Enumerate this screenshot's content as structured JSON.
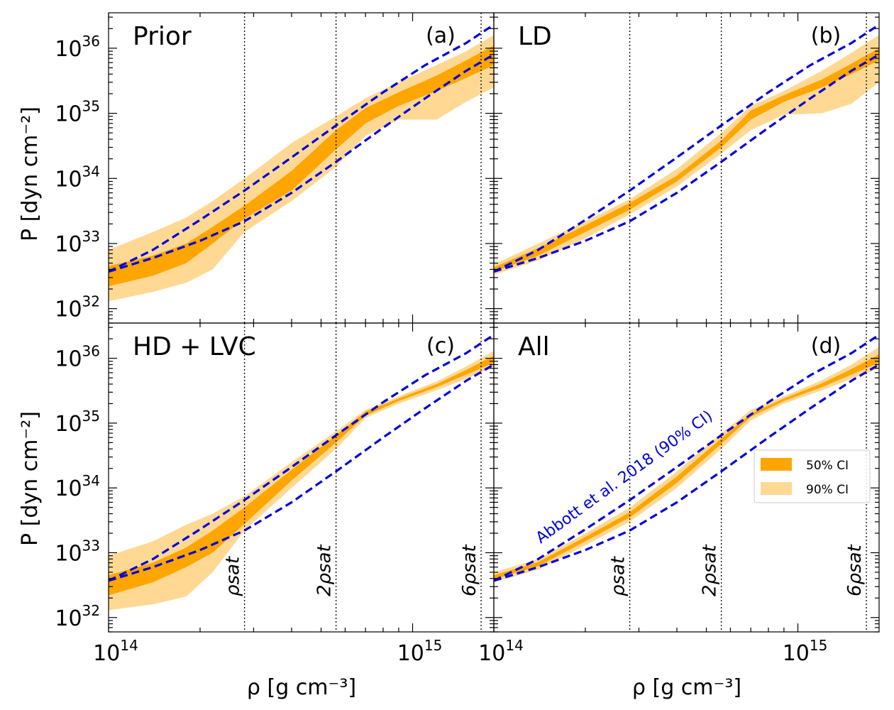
{
  "figure": {
    "xlabel": "ρ [g cm⁻³]",
    "ylabel": "P [dyn cm⁻²]",
    "legend": {
      "ci50": "50% CI",
      "ci90": "90% CI",
      "placement": "panel-d-right"
    },
    "abbott_label": "Abbott et al. 2018 (90% CI)",
    "colors": {
      "ci50": "#FFA500",
      "ci90": "#FFD994",
      "abbott": "#0000DD"
    }
  },
  "chart_data": {
    "type": "area",
    "xscale": "log",
    "yscale": "log",
    "xlim": [
      100000000000000.0,
      1850000000000000.0
    ],
    "ylim": [
      6e+31,
      3.5e+36
    ],
    "x_ticks": [
      {
        "value": 100000000000000.0,
        "base": "10",
        "exp": "14"
      },
      {
        "value": 1000000000000000.0,
        "base": "10",
        "exp": "15"
      }
    ],
    "y_ticks": [
      {
        "value": 1e+32,
        "base": "10",
        "exp": "32"
      },
      {
        "value": 1e+33,
        "base": "10",
        "exp": "33"
      },
      {
        "value": 1e+34,
        "base": "10",
        "exp": "34"
      },
      {
        "value": 1e+35,
        "base": "10",
        "exp": "35"
      },
      {
        "value": 1e+36,
        "base": "10",
        "exp": "36"
      }
    ],
    "saturation_lines": [
      {
        "value": 280000000000000.0,
        "label": "ρsat"
      },
      {
        "value": 560000000000000.0,
        "label": "2ρsat"
      },
      {
        "value": 1680000000000000.0,
        "label": "6ρsat"
      }
    ],
    "abbott_x": [
      100000000000000.0,
      140000000000000.0,
      200000000000000.0,
      280000000000000.0,
      400000000000000.0,
      560000000000000.0,
      800000000000000.0,
      1100000000000000.0,
      1500000000000000.0,
      1850000000000000.0
    ],
    "abbott_upper": [
      3.7e+32,
      8e+32,
      2.3e+33,
      6.5e+33,
      2.1e+34,
      6.5e+34,
      2.1e+35,
      5.5e+35,
      1.2e+36,
      2.3e+36
    ],
    "abbott_lower": [
      3.7e+32,
      6e+32,
      1.1e+33,
      2.2e+33,
      6e+33,
      1.8e+34,
      6e+34,
      1.7e+35,
      4.5e+35,
      8e+35
    ],
    "panels": [
      {
        "title": "Prior",
        "tag": "(a)",
        "x": [
          100000000000000.0,
          140000000000000.0,
          180000000000000.0,
          220000000000000.0,
          280000000000000.0,
          400000000000000.0,
          560000000000000.0,
          700000000000000.0,
          900000000000000.0,
          1200000000000000.0,
          1500000000000000.0,
          1850000000000000.0
        ],
        "ci90_low": [
          1.3e+32,
          1.8e+32,
          2.5e+32,
          4e+32,
          1.5e+33,
          4.5e+33,
          1.5e+34,
          4.5e+34,
          8e+34,
          8e+34,
          1.5e+35,
          2.5e+35
        ],
        "ci90_high": [
          8e+32,
          1.5e+33,
          2.5e+33,
          4.5e+33,
          1e+34,
          3.5e+34,
          9e+34,
          1.7e+35,
          3e+35,
          5.5e+35,
          9e+35,
          1.6e+36
        ],
        "ci50_low": [
          2.2e+32,
          3.2e+32,
          5e+32,
          1e+33,
          2.4e+33,
          6.5e+33,
          2.8e+34,
          7e+34,
          1.3e+35,
          2.2e+35,
          3.5e+35,
          5.5e+35
        ],
        "ci50_high": [
          4.5e+32,
          6.5e+32,
          1e+33,
          1.8e+33,
          3.8e+33,
          1.3e+34,
          5.5e+34,
          1.2e+35,
          2.1e+35,
          3.8e+35,
          6.5e+35,
          1.1e+36
        ]
      },
      {
        "title": "LD",
        "tag": "(b)",
        "x": [
          100000000000000.0,
          140000000000000.0,
          200000000000000.0,
          280000000000000.0,
          400000000000000.0,
          560000000000000.0,
          700000000000000.0,
          900000000000000.0,
          1200000000000000.0,
          1500000000000000.0,
          1850000000000000.0
        ],
        "ci90_low": [
          3.3e+32,
          5.5e+32,
          1.2e+33,
          2.8e+33,
          7.5e+33,
          2.4e+34,
          5.5e+34,
          9.5e+34,
          1e+35,
          1.4e+35,
          3e+35
        ],
        "ci90_high": [
          4.8e+32,
          1e+33,
          2.2e+33,
          4.8e+33,
          1.4e+34,
          5e+34,
          1.3e+35,
          2.2e+35,
          4.5e+35,
          8.5e+35,
          1.6e+36
        ],
        "ci50_low": [
          3.7e+32,
          6.5e+32,
          1.5e+33,
          3.3e+33,
          9e+33,
          3e+34,
          8e+34,
          1.5e+35,
          2.5e+35,
          4e+35,
          6.5e+35
        ],
        "ci50_high": [
          4.3e+32,
          8.5e+32,
          1.9e+33,
          4.2e+33,
          1.1e+34,
          3.8e+34,
          1.1e+35,
          1.9e+35,
          3.3e+35,
          5.8e+35,
          1e+36
        ]
      },
      {
        "title": "HD + LVC",
        "tag": "(c)",
        "x": [
          100000000000000.0,
          140000000000000.0,
          180000000000000.0,
          220000000000000.0,
          280000000000000.0,
          400000000000000.0,
          560000000000000.0,
          700000000000000.0,
          900000000000000.0,
          1200000000000000.0,
          1500000000000000.0,
          1850000000000000.0
        ],
        "ci90_low": [
          1.3e+32,
          1.6e+32,
          2.1e+32,
          5e+32,
          2.2e+33,
          1e+34,
          4e+34,
          1.2e+35,
          2e+35,
          3.2e+35,
          4.8e+35,
          7.5e+35
        ],
        "ci90_high": [
          9e+32,
          1.5e+33,
          2.7e+33,
          4e+33,
          7.5e+33,
          2.5e+34,
          7.5e+34,
          1.6e+35,
          2.6e+35,
          4.4e+35,
          7.5e+35,
          1.3e+36
        ],
        "ci50_low": [
          2.2e+32,
          3.5e+32,
          6e+32,
          1e+33,
          2.8e+33,
          1.3e+34,
          5e+34,
          1.3e+35,
          2.2e+35,
          3.6e+35,
          5.6e+35,
          8.5e+35
        ],
        "ci50_high": [
          4.5e+32,
          7e+32,
          1.2e+33,
          2.2e+33,
          5e+33,
          1.9e+34,
          6.5e+34,
          1.5e+35,
          2.4e+35,
          4e+35,
          6.6e+35,
          1.1e+36
        ]
      },
      {
        "title": "All",
        "tag": "(d)",
        "x": [
          100000000000000.0,
          140000000000000.0,
          200000000000000.0,
          280000000000000.0,
          400000000000000.0,
          560000000000000.0,
          700000000000000.0,
          900000000000000.0,
          1200000000000000.0,
          1500000000000000.0,
          1850000000000000.0
        ],
        "ci90_low": [
          3.5e+32,
          5.5e+32,
          1.3e+33,
          3e+33,
          1e+34,
          4e+34,
          1.1e+35,
          2e+35,
          3.2e+35,
          4.8e+35,
          7e+35
        ],
        "ci90_high": [
          5e+32,
          8e+32,
          2e+33,
          5e+33,
          1.8e+34,
          7e+34,
          1.6e+35,
          2.6e+35,
          4.6e+35,
          8e+35,
          1.5e+36
        ],
        "ci50_low": [
          3.9e+32,
          6.2e+32,
          1.5e+33,
          3.5e+33,
          1.2e+34,
          4.8e+34,
          1.25e+35,
          2.2e+35,
          3.6e+35,
          5.6e+35,
          8.5e+35
        ],
        "ci50_high": [
          4.5e+32,
          7.2e+32,
          1.75e+33,
          4.2e+33,
          1.5e+34,
          5.8e+34,
          1.4e+35,
          2.4e+35,
          4.1e+35,
          6.8e+35,
          1.15e+36
        ]
      }
    ]
  }
}
